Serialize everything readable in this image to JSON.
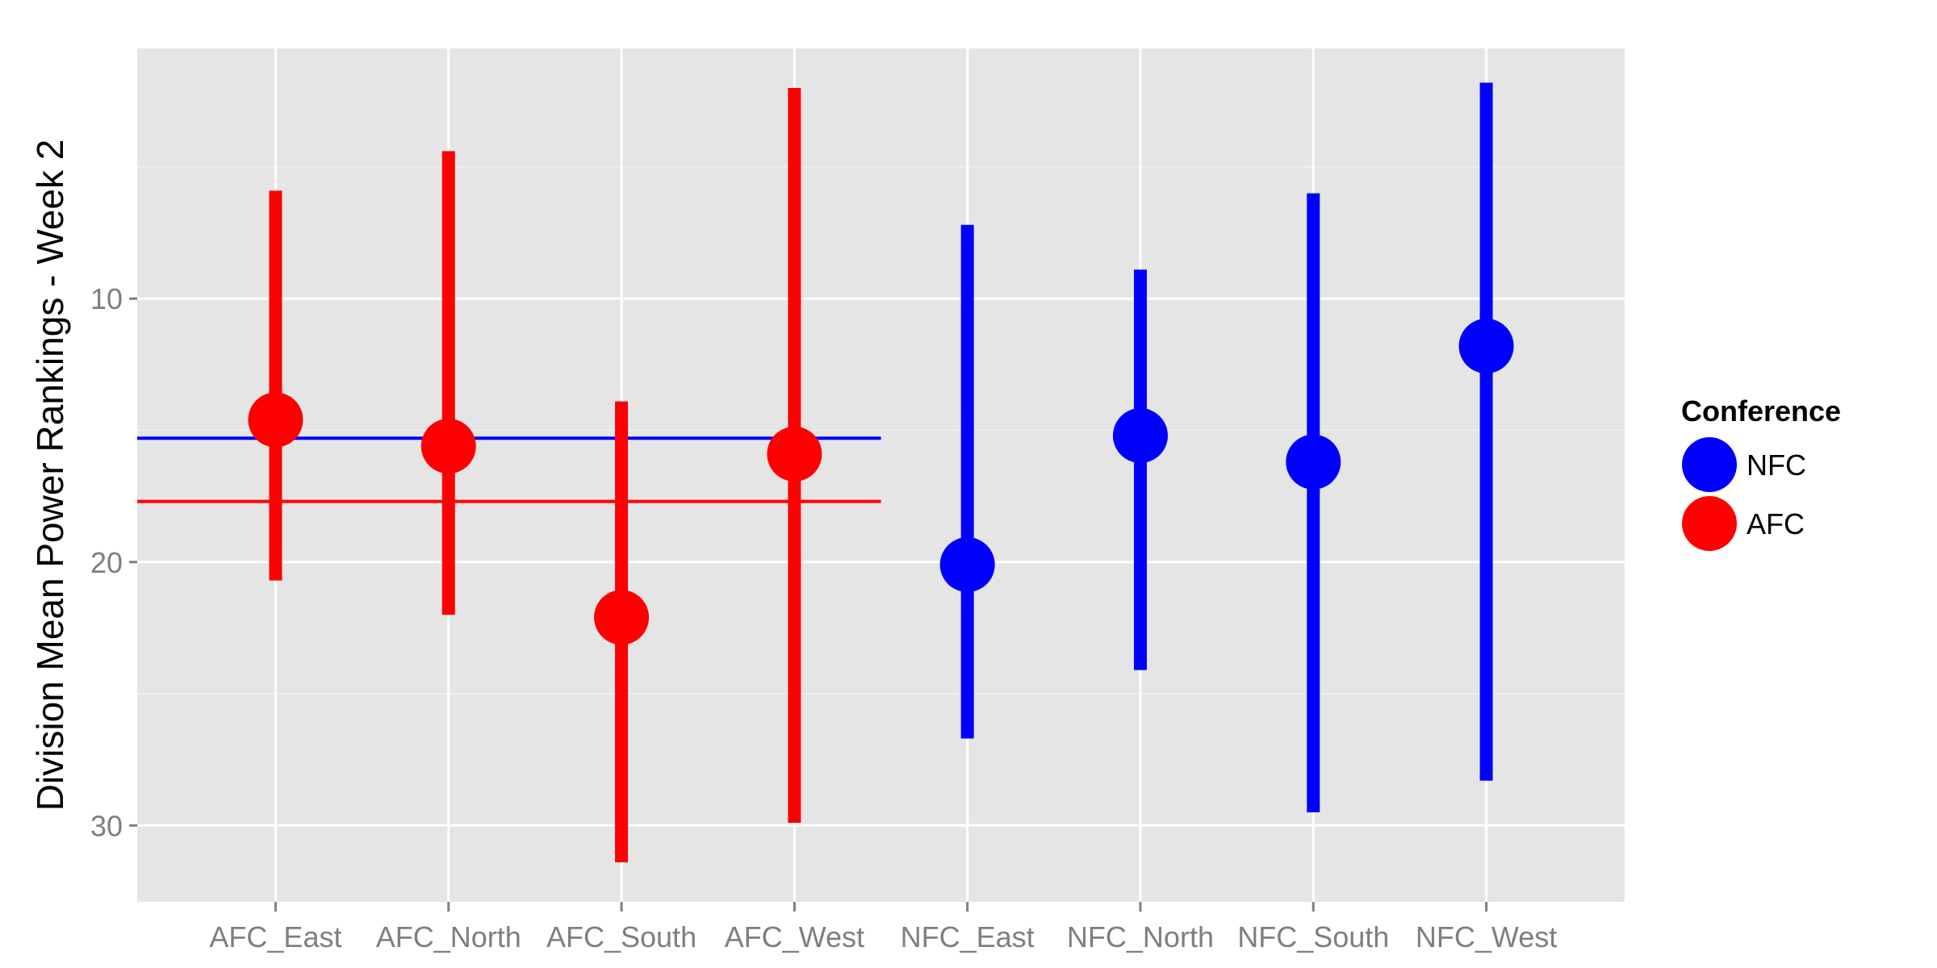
{
  "chart_data": {
    "type": "scatter",
    "title": "",
    "xlabel": "",
    "ylabel": "Division Mean Power Rankings - Week 2",
    "y_reversed": true,
    "ylim": [
      32.9,
      0.5
    ],
    "y_ticks": [
      10,
      20,
      30
    ],
    "y_tick_labels": [
      "10",
      "20",
      "30"
    ],
    "categories": [
      "AFC_East",
      "AFC_North",
      "AFC_South",
      "AFC_West",
      "NFC_East",
      "NFC_North",
      "NFC_South",
      "NFC_West"
    ],
    "points": [
      {
        "category": "AFC_East",
        "conference": "AFC",
        "mean": 14.6,
        "min": 5.9,
        "max": 20.7
      },
      {
        "category": "AFC_North",
        "conference": "AFC",
        "mean": 15.6,
        "min": 4.4,
        "max": 22.0
      },
      {
        "category": "AFC_South",
        "conference": "AFC",
        "mean": 22.1,
        "min": 13.9,
        "max": 31.4
      },
      {
        "category": "AFC_West",
        "conference": "AFC",
        "mean": 15.9,
        "min": 2.0,
        "max": 29.9
      },
      {
        "category": "NFC_East",
        "conference": "NFC",
        "mean": 20.1,
        "min": 7.2,
        "max": 26.7
      },
      {
        "category": "NFC_North",
        "conference": "NFC",
        "mean": 15.2,
        "min": 8.9,
        "max": 24.1
      },
      {
        "category": "NFC_South",
        "conference": "NFC",
        "mean": 16.2,
        "min": 6.0,
        "max": 29.5
      },
      {
        "category": "NFC_West",
        "conference": "NFC",
        "mean": 11.8,
        "min": 1.8,
        "max": 28.3
      }
    ],
    "reference_lines": [
      {
        "conference": "NFC",
        "y": 15.3,
        "x_from": "left-edge",
        "x_to_between": [
          "AFC_West",
          "NFC_East"
        ]
      },
      {
        "conference": "AFC",
        "y": 17.7,
        "x_from": "left-edge",
        "x_to_between": [
          "AFC_West",
          "NFC_East"
        ]
      }
    ],
    "grid": true,
    "legend": {
      "title": "Conference",
      "placement": "right",
      "entries": [
        {
          "label": "NFC",
          "color": "#0000ff"
        },
        {
          "label": "AFC",
          "color": "#ff0000"
        }
      ]
    },
    "colors": {
      "AFC": "#ff0000",
      "NFC": "#0000ff",
      "panel": "#e5e5e5",
      "grid": "#ffffff"
    }
  }
}
